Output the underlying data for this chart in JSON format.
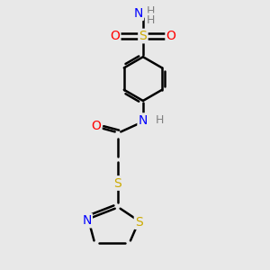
{
  "bg_color": "#e8e8e8",
  "atom_colors": {
    "C": "#000000",
    "H": "#808080",
    "N": "#0000ff",
    "O": "#ff0000",
    "S": "#ccaa00"
  },
  "bond_color": "#000000",
  "bond_width": 1.8,
  "fig_size": [
    3.0,
    3.0
  ],
  "dpi": 100,
  "xlim": [
    0,
    10
  ],
  "ylim": [
    0,
    10
  ]
}
